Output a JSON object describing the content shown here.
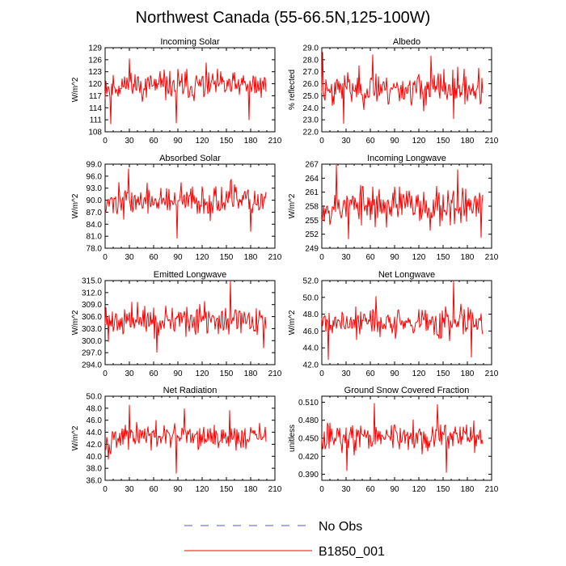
{
  "figure": {
    "title": "Northwest Canada (55-66.5N,125-100W)",
    "legend": [
      {
        "label": "No Obs",
        "color": "#5555cc",
        "style": "dashed"
      },
      {
        "label": "B1850_001",
        "color": "#ff0000",
        "style": "solid"
      }
    ],
    "line_color": "#ff0000"
  },
  "chart_data": [
    {
      "type": "line",
      "title": "Incoming Solar",
      "ylabel": "W/m^2",
      "xlim": [
        0,
        210
      ],
      "ylim": [
        108,
        129
      ],
      "xticks": [
        "0",
        "30",
        "60",
        "90",
        "120",
        "150",
        "180",
        "210"
      ],
      "yticks": [
        "108",
        "111",
        "114",
        "117",
        "120",
        "123",
        "126",
        "129"
      ],
      "n": 200,
      "base": 119.5,
      "amp": 2.6,
      "seed": 11,
      "spikes": [
        [
          30,
          126.2
        ],
        [
          88,
          110.2
        ],
        [
          7,
          110
        ],
        [
          125,
          125.2
        ],
        [
          178,
          111
        ]
      ]
    },
    {
      "type": "line",
      "title": "Albedo",
      "ylabel": "% reflected",
      "xlim": [
        0,
        210
      ],
      "ylim": [
        22,
        29
      ],
      "xticks": [
        "0",
        "30",
        "60",
        "90",
        "120",
        "150",
        "180",
        "210"
      ],
      "yticks": [
        "22.0",
        "23.0",
        "24.0",
        "25.0",
        "26.0",
        "27.0",
        "28.0",
        "29.0"
      ],
      "n": 200,
      "base": 25.6,
      "amp": 1.0,
      "seed": 23,
      "spikes": [
        [
          1,
          28.6
        ],
        [
          63,
          28.4
        ],
        [
          135,
          28.3
        ],
        [
          27,
          22.7
        ],
        [
          163,
          23.1
        ]
      ]
    },
    {
      "type": "line",
      "title": "Absorbed Solar",
      "ylabel": "W/m^2",
      "xlim": [
        0,
        210
      ],
      "ylim": [
        78,
        99
      ],
      "xticks": [
        "0",
        "30",
        "60",
        "90",
        "120",
        "150",
        "180",
        "210"
      ],
      "yticks": [
        "78.0",
        "81.0",
        "84.0",
        "87.0",
        "90.0",
        "93.0",
        "96.0",
        "99.0"
      ],
      "n": 200,
      "base": 89.8,
      "amp": 2.6,
      "seed": 37,
      "spikes": [
        [
          29,
          97.8
        ],
        [
          89,
          80.5
        ],
        [
          156,
          95.2
        ],
        [
          180,
          82.2
        ]
      ]
    },
    {
      "type": "line",
      "title": "Incoming Longwave",
      "ylabel": "W/m^2",
      "xlim": [
        0,
        210
      ],
      "ylim": [
        249,
        267
      ],
      "xticks": [
        "0",
        "30",
        "60",
        "90",
        "120",
        "150",
        "180",
        "210"
      ],
      "yticks": [
        "249",
        "252",
        "255",
        "258",
        "261",
        "264",
        "267"
      ],
      "n": 200,
      "base": 258.2,
      "amp": 3.0,
      "seed": 53,
      "spikes": [
        [
          18,
          266.8
        ],
        [
          33,
          251
        ],
        [
          168,
          265.8
        ],
        [
          197,
          251.3
        ]
      ]
    },
    {
      "type": "line",
      "title": "Emitted Longwave",
      "ylabel": "W/m^2",
      "xlim": [
        0,
        210
      ],
      "ylim": [
        294,
        315
      ],
      "xticks": [
        "0",
        "30",
        "60",
        "90",
        "120",
        "150",
        "180",
        "210"
      ],
      "yticks": [
        "294.0",
        "297.0",
        "300.0",
        "303.0",
        "306.0",
        "309.0",
        "312.0",
        "315.0"
      ],
      "n": 200,
      "base": 305.0,
      "amp": 2.6,
      "seed": 71,
      "spikes": [
        [
          155,
          314.8
        ],
        [
          64,
          297.1
        ],
        [
          196,
          298.2
        ],
        [
          4,
          299.8
        ]
      ]
    },
    {
      "type": "line",
      "title": "Net Longwave",
      "ylabel": "W/m^2",
      "xlim": [
        0,
        210
      ],
      "ylim": [
        42,
        52
      ],
      "xticks": [
        "0",
        "30",
        "60",
        "90",
        "120",
        "150",
        "180",
        "210"
      ],
      "yticks": [
        "42.0",
        "44.0",
        "46.0",
        "48.0",
        "50.0",
        "52.0"
      ],
      "n": 200,
      "base": 47.0,
      "amp": 1.3,
      "seed": 89,
      "spikes": [
        [
          163,
          51.9
        ],
        [
          8,
          42.6
        ],
        [
          185,
          42.9
        ],
        [
          67,
          50.1
        ]
      ]
    },
    {
      "type": "line",
      "title": "Net Radiation",
      "ylabel": "W/m^2",
      "xlim": [
        0,
        210
      ],
      "ylim": [
        36,
        50
      ],
      "xticks": [
        "0",
        "30",
        "60",
        "90",
        "120",
        "150",
        "180",
        "210"
      ],
      "yticks": [
        "36.0",
        "38.0",
        "40.0",
        "42.0",
        "44.0",
        "46.0",
        "48.0",
        "50.0"
      ],
      "n": 200,
      "base": 43.2,
      "amp": 1.5,
      "seed": 97,
      "spikes": [
        [
          30,
          48.5
        ],
        [
          88,
          37.2
        ],
        [
          98,
          47.9
        ],
        [
          154,
          47.6
        ],
        [
          4,
          39.5
        ]
      ]
    },
    {
      "type": "line",
      "title": "Ground Snow Covered Fraction",
      "ylabel": "unitless",
      "xlim": [
        0,
        210
      ],
      "ylim": [
        0.38,
        0.52
      ],
      "xticks": [
        "0",
        "30",
        "60",
        "90",
        "120",
        "150",
        "180",
        "210"
      ],
      "yticks": [
        "0.390",
        "0.420",
        "0.450",
        "0.480",
        "0.510"
      ],
      "n": 200,
      "base": 0.452,
      "amp": 0.017,
      "seed": 113,
      "spikes": [
        [
          65,
          0.508
        ],
        [
          143,
          0.506
        ],
        [
          154,
          0.393
        ],
        [
          31,
          0.396
        ]
      ]
    }
  ]
}
